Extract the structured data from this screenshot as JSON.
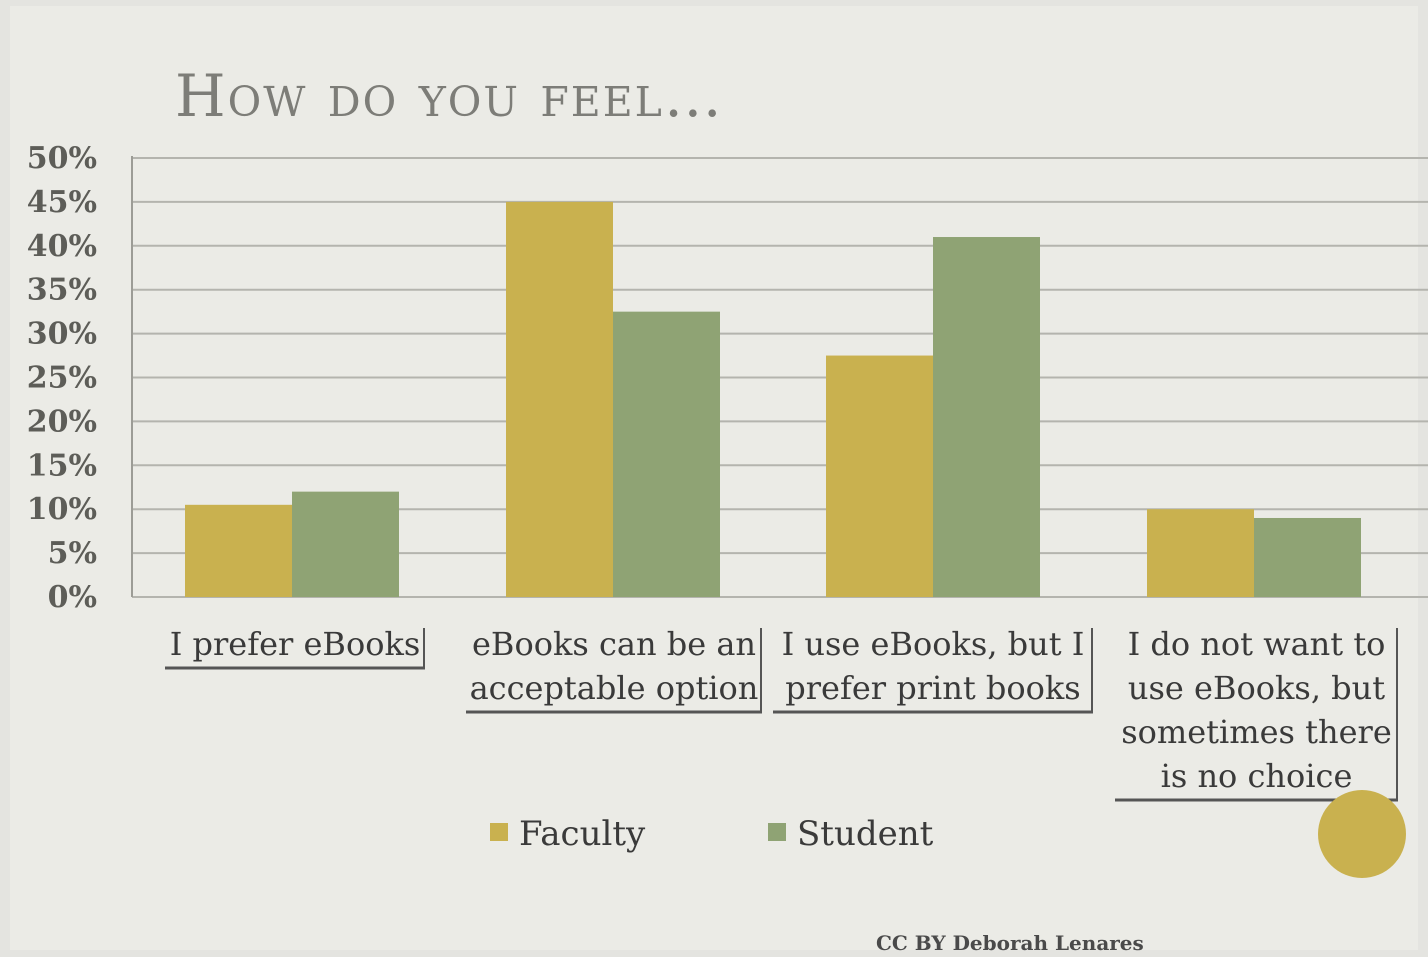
{
  "slide": {
    "title": "How do you feel…",
    "credit": "CC BY Deborah Lenares"
  },
  "chart_data": {
    "type": "bar",
    "title": "How do you feel…",
    "categories": [
      [
        "I prefer eBooks"
      ],
      [
        "eBooks can be an",
        "acceptable option"
      ],
      [
        "I use eBooks, but I",
        "prefer print books"
      ],
      [
        "I do not want to",
        "use eBooks, but",
        "sometimes there",
        "is no choice"
      ]
    ],
    "series": [
      {
        "name": "Faculty",
        "color": "#c9b14f",
        "values": [
          10.5,
          45,
          27.5,
          10
        ]
      },
      {
        "name": "Student",
        "color": "#8fa374",
        "values": [
          12,
          32.5,
          41,
          9
        ]
      }
    ],
    "y_ticks": [
      "0%",
      "5%",
      "10%",
      "15%",
      "20%",
      "25%",
      "30%",
      "35%",
      "40%",
      "45%",
      "50%"
    ],
    "ylim": [
      0,
      50
    ],
    "grid": true,
    "legend": "bottom"
  }
}
